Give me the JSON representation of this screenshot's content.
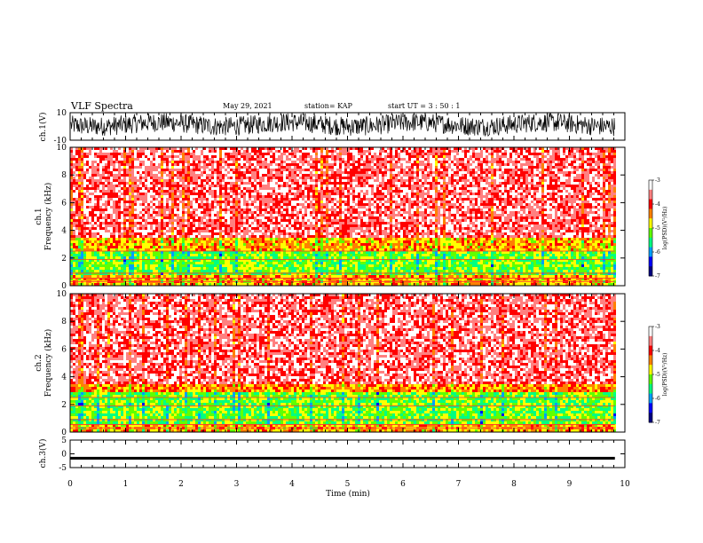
{
  "header": {
    "title": "VLF Spectra",
    "date": "May 29, 2021",
    "station": "station= KAP",
    "start": "start  UT =   3 : 50 : 1"
  },
  "colors": {
    "waveform": "#000000",
    "spectrogram_scale": [
      "#000080",
      "#0000ff",
      "#00a0ff",
      "#00ff80",
      "#60ff00",
      "#ffff00",
      "#ff8000",
      "#ff0000",
      "#ff8080",
      "#ffffff"
    ]
  },
  "chart_data": [
    {
      "type": "line",
      "panel": "ch1-waveform",
      "ylabel": "ch.1(V)",
      "ylim": [
        -10,
        10
      ],
      "yticks": [
        "10",
        "-10"
      ],
      "xlim": [
        0,
        10
      ],
      "note_values": "dense noisy waveform filling roughly -6 to 9 V"
    },
    {
      "type": "heatmap",
      "panel": "ch1-spectrogram",
      "ylabel": "ch.1\nFrequency (kHz)",
      "ylim": [
        0,
        10
      ],
      "yticks": [
        "0",
        "2",
        "4",
        "6",
        "8",
        "10"
      ],
      "xlim": [
        0,
        10
      ],
      "bands": [
        {
          "from_khz": 0,
          "to_khz": 0.8,
          "level": 0.62
        },
        {
          "from_khz": 0.8,
          "to_khz": 2.6,
          "level": 0.45
        },
        {
          "from_khz": 2.6,
          "to_khz": 3.6,
          "level": 0.62
        },
        {
          "from_khz": 3.6,
          "to_khz": 10,
          "level": 0.85
        }
      ],
      "colorbar": {
        "label": "log(PSD)(V²/Hz)",
        "ticks": [
          "-3",
          "-4",
          "-5",
          "-6",
          "-7"
        ],
        "range": [
          -7,
          -3
        ]
      }
    },
    {
      "type": "heatmap",
      "panel": "ch2-spectrogram",
      "ylabel": "ch.2\nFrequency (kHz)",
      "ylim": [
        0,
        10
      ],
      "yticks": [
        "0",
        "2",
        "4",
        "6",
        "8",
        "10"
      ],
      "xlim": [
        0,
        10
      ],
      "bands": [
        {
          "from_khz": 0,
          "to_khz": 0.6,
          "level": 0.62
        },
        {
          "from_khz": 0.6,
          "to_khz": 2.9,
          "level": 0.45
        },
        {
          "from_khz": 2.9,
          "to_khz": 3.6,
          "level": 0.66
        },
        {
          "from_khz": 3.6,
          "to_khz": 10,
          "level": 0.85
        }
      ],
      "colorbar": {
        "label": "log(PSD)(V²/Hz)",
        "ticks": [
          "-3",
          "-4",
          "-5",
          "-6",
          "-7"
        ],
        "range": [
          -7,
          -3
        ]
      }
    },
    {
      "type": "line",
      "panel": "ch3-waveform",
      "ylabel": "ch.3(V)",
      "ylim": [
        -5,
        5
      ],
      "yticks": [
        "5",
        "0",
        "-5"
      ],
      "xlim": [
        0,
        10
      ],
      "note_values": "flat band around -1.5 V"
    }
  ],
  "xaxis": {
    "label": "Time (min)",
    "ticks": [
      "0",
      "1",
      "2",
      "3",
      "4",
      "5",
      "6",
      "7",
      "8",
      "9",
      "10"
    ]
  }
}
